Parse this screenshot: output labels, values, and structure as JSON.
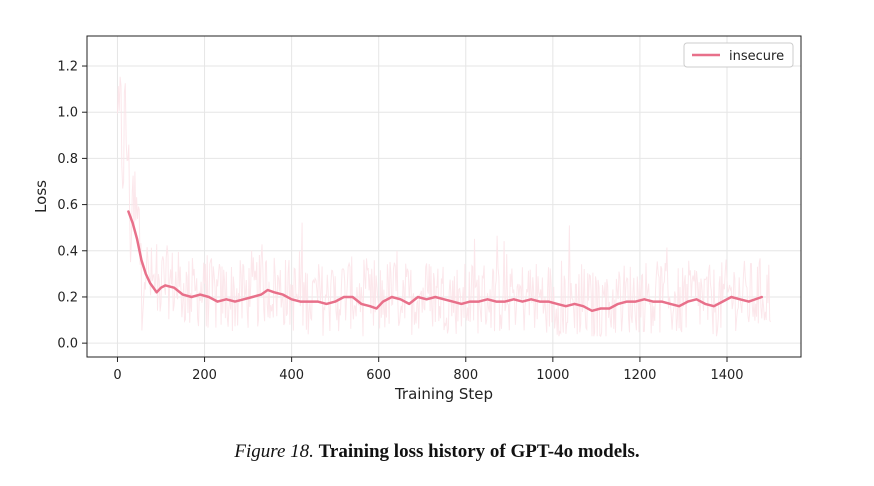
{
  "chart_data": {
    "type": "line",
    "title": "",
    "xlabel": "Training Step",
    "ylabel": "Loss",
    "xlim": [
      -70,
      1570
    ],
    "ylim": [
      -0.06,
      1.33
    ],
    "xticks": [
      0,
      200,
      400,
      600,
      800,
      1000,
      1200,
      1400
    ],
    "yticks": [
      0.0,
      0.2,
      0.4,
      0.6,
      0.8,
      1.0,
      1.2
    ],
    "xtick_labels": [
      "0",
      "200",
      "400",
      "600",
      "800",
      "1000",
      "1200",
      "1400"
    ],
    "ytick_labels": [
      "0.0",
      "0.2",
      "0.4",
      "0.6",
      "0.8",
      "1.0",
      "1.2"
    ],
    "grid": true,
    "legend_position": "top-right",
    "series": [
      {
        "name": "insecure",
        "color": "#e8708a",
        "raw_color": "#fbe3e7",
        "x": [
          25,
          35,
          45,
          55,
          65,
          75,
          90,
          100,
          110,
          130,
          150,
          170,
          190,
          210,
          230,
          250,
          270,
          290,
          310,
          330,
          345,
          360,
          380,
          400,
          420,
          440,
          460,
          480,
          500,
          520,
          540,
          560,
          580,
          595,
          610,
          630,
          650,
          670,
          690,
          710,
          730,
          750,
          770,
          790,
          810,
          830,
          850,
          870,
          890,
          910,
          930,
          950,
          970,
          990,
          1010,
          1030,
          1050,
          1070,
          1090,
          1110,
          1130,
          1150,
          1170,
          1190,
          1210,
          1230,
          1250,
          1270,
          1290,
          1310,
          1330,
          1350,
          1370,
          1390,
          1410,
          1430,
          1450,
          1480
        ],
        "y": [
          0.57,
          0.52,
          0.45,
          0.36,
          0.3,
          0.26,
          0.22,
          0.24,
          0.25,
          0.24,
          0.21,
          0.2,
          0.21,
          0.2,
          0.18,
          0.19,
          0.18,
          0.19,
          0.2,
          0.21,
          0.23,
          0.22,
          0.21,
          0.19,
          0.18,
          0.18,
          0.18,
          0.17,
          0.18,
          0.2,
          0.2,
          0.17,
          0.16,
          0.15,
          0.18,
          0.2,
          0.19,
          0.17,
          0.2,
          0.19,
          0.2,
          0.19,
          0.18,
          0.17,
          0.18,
          0.18,
          0.19,
          0.18,
          0.18,
          0.19,
          0.18,
          0.19,
          0.18,
          0.18,
          0.17,
          0.16,
          0.17,
          0.16,
          0.14,
          0.15,
          0.15,
          0.17,
          0.18,
          0.18,
          0.19,
          0.18,
          0.18,
          0.17,
          0.16,
          0.18,
          0.19,
          0.17,
          0.16,
          0.18,
          0.2,
          0.19,
          0.18,
          0.2
        ]
      }
    ]
  },
  "caption": {
    "label": "Figure 18.",
    "text": "Training loss history of GPT-4o models."
  }
}
